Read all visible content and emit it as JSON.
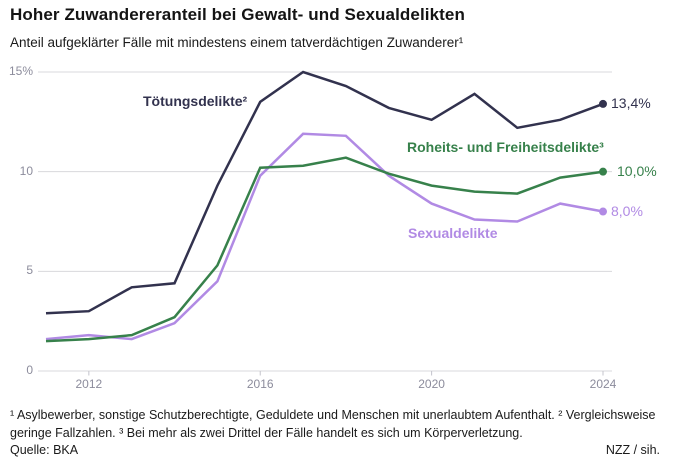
{
  "header": {
    "title": "Hoher Zuwandereranteil bei Gewalt- und Sexualdelikten",
    "subtitle": "Anteil aufgeklärter Fälle mit mindestens einem tatverdächtigen Zuwanderer¹"
  },
  "chart_data": {
    "type": "line",
    "x": [
      2011,
      2012,
      2013,
      2014,
      2015,
      2016,
      2017,
      2018,
      2019,
      2020,
      2021,
      2022,
      2023,
      2024
    ],
    "series": [
      {
        "name": "Tötungsdelikte²",
        "color": "#32324e",
        "values": [
          2.9,
          3.0,
          4.2,
          4.4,
          9.3,
          13.5,
          15.0,
          14.3,
          13.2,
          12.6,
          13.9,
          12.2,
          12.6,
          13.4
        ],
        "end_label": "13,4%"
      },
      {
        "name": "Roheits- und Freiheitsdelikte³",
        "color": "#37814b",
        "values": [
          1.5,
          1.6,
          1.8,
          2.7,
          5.3,
          10.2,
          10.3,
          10.7,
          9.9,
          9.3,
          9.0,
          8.9,
          9.7,
          10.0
        ],
        "end_label": "10,0%"
      },
      {
        "name": "Sexualdelikte",
        "color": "#b18ae4",
        "values": [
          1.6,
          1.8,
          1.6,
          2.4,
          4.5,
          9.8,
          11.9,
          11.8,
          9.8,
          8.4,
          7.6,
          7.5,
          8.4,
          8.0
        ],
        "end_label": "8,0%"
      }
    ],
    "y_ticks": [
      {
        "value": 0,
        "label": "0"
      },
      {
        "value": 5,
        "label": "5"
      },
      {
        "value": 10,
        "label": "10"
      },
      {
        "value": 15,
        "label": "15%"
      }
    ],
    "x_ticks": [
      {
        "value": 2012,
        "label": "2012"
      },
      {
        "value": 2016,
        "label": "2016"
      },
      {
        "value": 2020,
        "label": "2020"
      },
      {
        "value": 2024,
        "label": "2024"
      }
    ],
    "ylim": [
      0,
      15
    ],
    "xlim": [
      2011,
      2024
    ],
    "grid": "horizontal",
    "legend_position": "inline-labels",
    "colors": {
      "gridline": "#d8d8dc",
      "tick": "#c4c4cc",
      "axis_text": "#8c8c9c"
    }
  },
  "footer": {
    "footnote": "¹ Asylbewerber, sonstige Schutzberechtigte, Geduldete und Menschen mit unerlaubtem Aufenthalt. ² Vergleichsweise geringe Fallzahlen. ³ Bei mehr als zwei Drittel der Fälle handelt es sich um Körperverletzung.",
    "source": "Quelle: BKA",
    "credit": "NZZ / sih."
  }
}
